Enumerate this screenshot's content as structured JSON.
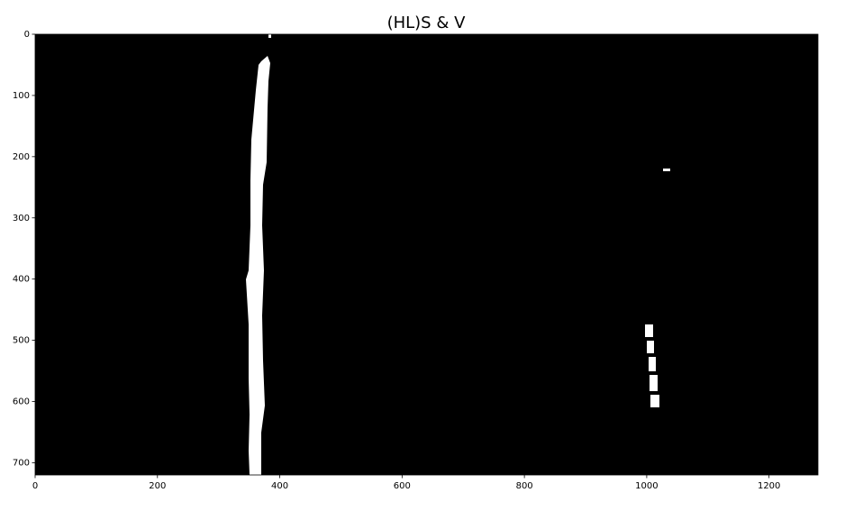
{
  "chart_data": {
    "type": "image",
    "title": "(HL)S & V",
    "xlim": [
      0,
      1280
    ],
    "ylim": [
      720,
      0
    ],
    "xticks": [
      0,
      200,
      400,
      600,
      800,
      1000,
      1200
    ],
    "yticks": [
      0,
      100,
      200,
      300,
      400,
      500,
      600,
      700
    ]
  }
}
